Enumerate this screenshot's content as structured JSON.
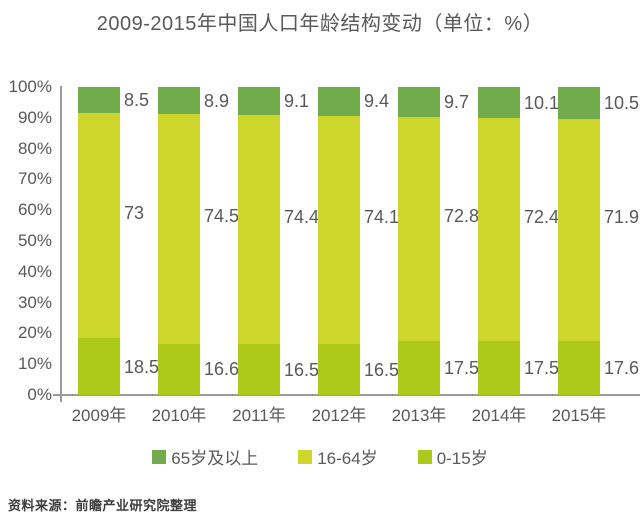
{
  "title": "2009-2015年中国人口年龄结构变动（单位：%）",
  "source": "资料来源：前瞻产业研究院整理",
  "chart_data": {
    "type": "bar",
    "stacked": true,
    "title": "2009-2015年中国人口年龄结构变动（单位：%）",
    "categories": [
      "2009年",
      "2010年",
      "2011年",
      "2012年",
      "2013年",
      "2014年",
      "2015年"
    ],
    "series": [
      {
        "name": "0-15岁",
        "color": "#adc91a",
        "values": [
          18.5,
          16.6,
          16.5,
          16.5,
          17.5,
          17.5,
          17.6
        ]
      },
      {
        "name": "16-64岁",
        "color": "#cdd62a",
        "values": [
          73,
          74.5,
          74.4,
          74.1,
          72.8,
          72.4,
          71.9
        ]
      },
      {
        "name": "65岁及以上",
        "color": "#71ab4c",
        "values": [
          8.5,
          8.9,
          9.1,
          9.4,
          9.7,
          10.1,
          10.5
        ]
      }
    ],
    "ylim": [
      0,
      100
    ],
    "y_tick_labels": [
      "0%",
      "10%",
      "20%",
      "30%",
      "40%",
      "50%",
      "60%",
      "70%",
      "80%",
      "90%",
      "100%"
    ],
    "grid": false,
    "value_labels": true,
    "legend": {
      "position": "bottom",
      "items": [
        {
          "label": "65岁及以上",
          "color": "#71ab4c"
        },
        {
          "label": "16-64岁",
          "color": "#cdd62a"
        },
        {
          "label": "0-15岁",
          "color": "#adc91a"
        }
      ]
    }
  }
}
